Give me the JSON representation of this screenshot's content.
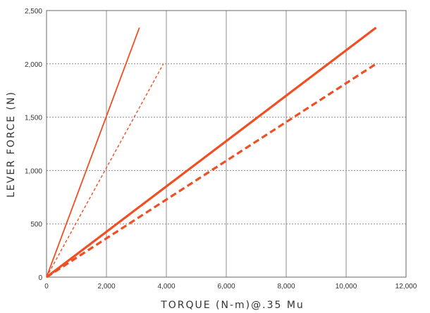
{
  "chart_data": {
    "type": "line",
    "title": "",
    "xlabel": "TORQUE (N-m)@.35 Mu",
    "ylabel": "LEVER FORCE (N)",
    "xlim": [
      0,
      12000
    ],
    "ylim": [
      0,
      2500
    ],
    "x_ticks": [
      0,
      2000,
      4000,
      6000,
      8000,
      10000,
      12000
    ],
    "x_tick_labels": [
      "0",
      "2,000",
      "4,000",
      "6,000",
      "8,000",
      "10,000",
      "12,000"
    ],
    "y_ticks": [
      0,
      500,
      1000,
      1500,
      2000,
      2500
    ],
    "y_tick_labels": [
      "0",
      "500",
      "1,000",
      "1,500",
      "2,000",
      "2,500"
    ],
    "vertical_grid": "solid",
    "horizontal_grid": "dotted",
    "legend": "none",
    "color": "#f04e23",
    "series": [
      {
        "style": "solid-thin",
        "x": [
          0,
          3100
        ],
        "y": [
          0,
          2340
        ]
      },
      {
        "style": "dashed-thin",
        "x": [
          0,
          3900
        ],
        "y": [
          0,
          2000
        ]
      },
      {
        "style": "solid-thick",
        "x": [
          0,
          11000
        ],
        "y": [
          0,
          2340
        ]
      },
      {
        "style": "dashed-thick",
        "x": [
          0,
          11000
        ],
        "y": [
          0,
          2000
        ]
      }
    ]
  }
}
